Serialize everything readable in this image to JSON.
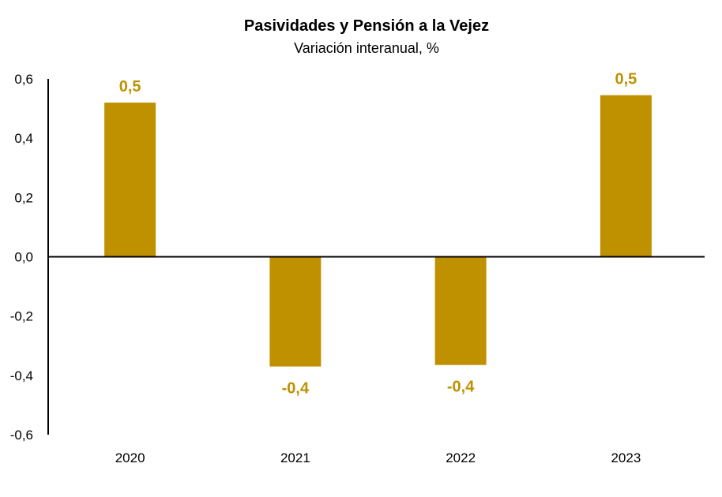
{
  "chart_data": {
    "type": "bar",
    "title": "Pasividades y Pensión a la Vejez",
    "subtitle": "Variación interanual, %",
    "categories": [
      "2020",
      "2021",
      "2022",
      "2023"
    ],
    "values": [
      0.52,
      -0.37,
      -0.365,
      0.545
    ],
    "data_labels": [
      "0,5",
      "-0,4",
      "-0,4",
      "0,5"
    ],
    "ylim": [
      -0.6,
      0.6
    ],
    "yticks": [
      0.6,
      0.4,
      0.2,
      0.0,
      -0.2,
      -0.4,
      -0.6
    ],
    "ytick_labels": [
      "0,6",
      "0,4",
      "0,2",
      "0,0",
      "-0,2",
      "-0,4",
      "-0,6"
    ],
    "xlabel": "",
    "ylabel": "",
    "grid": false,
    "legend": "none",
    "colors": {
      "bar": "#BF9000",
      "data_label": "#BF9000",
      "axis": "#000000"
    }
  }
}
